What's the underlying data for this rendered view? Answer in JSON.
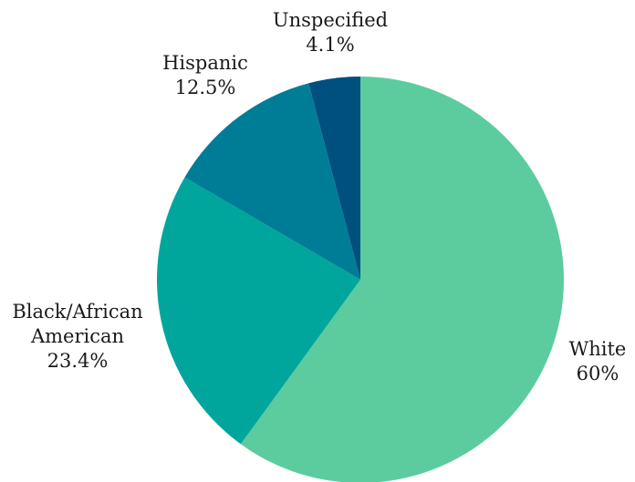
{
  "chart_data": {
    "type": "pie",
    "title": "",
    "start_angle_deg": 0,
    "direction": "clockwise",
    "slices": [
      {
        "name": "White",
        "label_lines": [
          "White"
        ],
        "value": 60,
        "value_label": "60%",
        "color": "#5ccc9e"
      },
      {
        "name": "Black/African American",
        "label_lines": [
          "Black/African",
          "American"
        ],
        "value": 23.4,
        "value_label": "23.4%",
        "color": "#00a69c"
      },
      {
        "name": "Hispanic",
        "label_lines": [
          "Hispanic"
        ],
        "value": 12.5,
        "value_label": "12.5%",
        "color": "#007d96"
      },
      {
        "name": "Unspecified",
        "label_lines": [
          "Unspecified"
        ],
        "value": 4.1,
        "value_label": "4.1%",
        "color": "#00507f"
      }
    ]
  }
}
